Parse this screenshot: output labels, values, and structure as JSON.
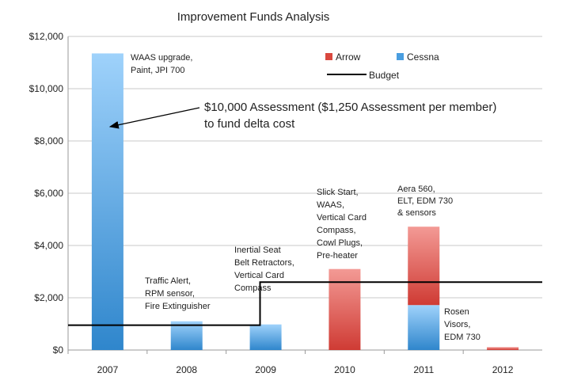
{
  "chart_data": {
    "type": "bar",
    "title": "Improvement Funds Analysis",
    "categories": [
      "2007",
      "2008",
      "2009",
      "2010",
      "2011",
      "2012"
    ],
    "series": [
      {
        "name": "Cessna",
        "color": "#4a9ee0",
        "values": [
          11350,
          1100,
          980,
          0,
          1720,
          0
        ]
      },
      {
        "name": "Arrow",
        "color": "#d9483f",
        "values": [
          0,
          0,
          0,
          3100,
          3000,
          110
        ]
      }
    ],
    "budget": {
      "name": "Budget",
      "color": "#000000",
      "points": [
        [
          2007,
          950
        ],
        [
          2009,
          950
        ],
        [
          2009,
          2600
        ],
        [
          2012,
          2600
        ]
      ]
    },
    "ylim": [
      0,
      12000
    ],
    "yticks": [
      0,
      2000,
      4000,
      6000,
      8000,
      10000,
      12000
    ],
    "ytick_labels": [
      "$0",
      "$2,000",
      "$4,000",
      "$6,000",
      "$8,000",
      "$10,000",
      "$12,000"
    ],
    "grid": true,
    "legend_position": "top-right",
    "annotations": {
      "a2007": [
        "WAAS upgrade,",
        "Paint, JPI 700"
      ],
      "a2008": [
        "Traffic Alert,",
        "RPM sensor,",
        "Fire Extinguisher"
      ],
      "a2009": [
        "Inertial Seat",
        "Belt Retractors,",
        "Vertical Card",
        "Compass"
      ],
      "a2010": [
        "Slick Start,",
        "WAAS,",
        "Vertical Card",
        "Compass,",
        "Cowl Plugs,",
        "Pre-heater"
      ],
      "a2011_top": [
        "Aera 560,",
        "ELT, EDM 730",
        "& sensors"
      ],
      "a2011_bottom": [
        "Rosen",
        "Visors,",
        "EDM 730"
      ],
      "assessment": [
        "$10,000 Assessment ($1,250 Assessment per member)",
        "to fund delta cost"
      ]
    }
  }
}
